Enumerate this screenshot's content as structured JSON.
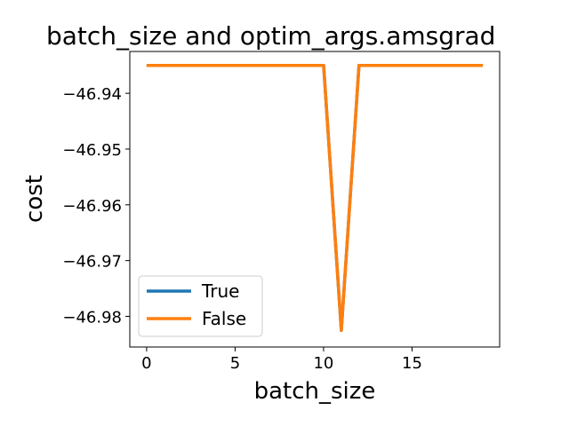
{
  "chart_data": {
    "type": "line",
    "title": "batch_size and optim_args.amsgrad",
    "xlabel": "batch_size",
    "ylabel": "cost",
    "xlim": [
      -0.95,
      19.95
    ],
    "ylim": [
      -46.9855,
      -46.9325
    ],
    "xticks": [
      0,
      5,
      10,
      15
    ],
    "yticks": [
      -46.94,
      -46.95,
      -46.96,
      -46.97,
      -46.98
    ],
    "ytick_labels": [
      "−46.94",
      "−46.95",
      "−46.96",
      "−46.97",
      "−46.98"
    ],
    "grid": false,
    "legend_position": "lower-left",
    "series": [
      {
        "name": "True",
        "color": "#1f77b4",
        "x": [
          0,
          1,
          2,
          3,
          4,
          5,
          6,
          7,
          8,
          9,
          10,
          11,
          12,
          13,
          14,
          15,
          16,
          17,
          18,
          19
        ],
        "y": [
          -46.935,
          -46.935,
          -46.935,
          -46.935,
          -46.935,
          -46.935,
          -46.935,
          -46.935,
          -46.935,
          -46.935,
          -46.935,
          -46.9825,
          -46.935,
          -46.935,
          -46.935,
          -46.935,
          -46.935,
          -46.935,
          -46.935,
          -46.935
        ]
      },
      {
        "name": "False",
        "color": "#ff7f0e",
        "x": [
          0,
          1,
          2,
          3,
          4,
          5,
          6,
          7,
          8,
          9,
          10,
          11,
          12,
          13,
          14,
          15,
          16,
          17,
          18,
          19
        ],
        "y": [
          -46.935,
          -46.935,
          -46.935,
          -46.935,
          -46.935,
          -46.935,
          -46.935,
          -46.935,
          -46.935,
          -46.935,
          -46.935,
          -46.9825,
          -46.935,
          -46.935,
          -46.935,
          -46.935,
          -46.935,
          -46.935,
          -46.935,
          -46.935
        ]
      }
    ]
  }
}
